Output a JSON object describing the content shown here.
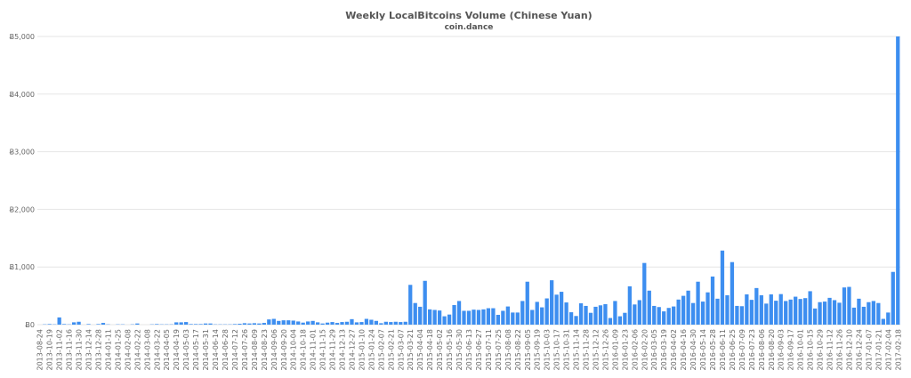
{
  "chart_data": {
    "type": "bar",
    "title": "Weekly LocalBitcoins Volume (Chinese Yuan)",
    "subtitle": "coin.dance",
    "xlabel": "",
    "ylabel": "",
    "ylim": [
      0,
      5000
    ],
    "yticks": [
      0,
      1000,
      2000,
      3000,
      4000,
      5000
    ],
    "ytick_labels": [
      "Ƀ0",
      "Ƀ1,000",
      "Ƀ2,000",
      "Ƀ3,000",
      "Ƀ4,000",
      "Ƀ5,000"
    ],
    "grid": true,
    "bar_color": "#3d8ef0",
    "categories": [
      "2013-08-24",
      "2013-10-12",
      "2013-10-19",
      "2013-10-26",
      "2013-11-02",
      "2013-11-09",
      "2013-11-16",
      "2013-11-23",
      "2013-11-30",
      "2013-12-07",
      "2013-12-14",
      "2013-12-21",
      "2013-12-28",
      "2014-01-04",
      "2014-01-11",
      "2014-01-18",
      "2014-01-25",
      "2014-02-01",
      "2014-02-08",
      "2014-02-15",
      "2014-02-22",
      "2014-03-01",
      "2014-03-08",
      "2014-03-15",
      "2014-03-22",
      "2014-03-29",
      "2014-04-05",
      "2014-04-12",
      "2014-04-19",
      "2014-04-26",
      "2014-05-03",
      "2014-05-10",
      "2014-05-17",
      "2014-05-24",
      "2014-05-31",
      "2014-06-07",
      "2014-06-14",
      "2014-06-21",
      "2014-06-28",
      "2014-07-05",
      "2014-07-12",
      "2014-07-19",
      "2014-07-26",
      "2014-08-02",
      "2014-08-09",
      "2014-08-16",
      "2014-08-23",
      "2014-08-30",
      "2014-09-06",
      "2014-09-13",
      "2014-09-20",
      "2014-09-27",
      "2014-10-04",
      "2014-10-11",
      "2014-10-18",
      "2014-10-25",
      "2014-11-01",
      "2014-11-08",
      "2014-11-15",
      "2014-11-22",
      "2014-11-29",
      "2014-12-06",
      "2014-12-13",
      "2014-12-20",
      "2014-12-27",
      "2015-01-03",
      "2015-01-10",
      "2015-01-17",
      "2015-01-24",
      "2015-01-31",
      "2015-02-07",
      "2015-02-14",
      "2015-02-21",
      "2015-02-28",
      "2015-03-07",
      "2015-03-14",
      "2015-03-21",
      "2015-03-28",
      "2015-04-04",
      "2015-04-11",
      "2015-04-18",
      "2015-04-25",
      "2015-05-02",
      "2015-05-09",
      "2015-05-16",
      "2015-05-23",
      "2015-05-30",
      "2015-06-06",
      "2015-06-13",
      "2015-06-20",
      "2015-06-27",
      "2015-07-04",
      "2015-07-11",
      "2015-07-18",
      "2015-07-25",
      "2015-08-01",
      "2015-08-08",
      "2015-08-15",
      "2015-08-22",
      "2015-08-29",
      "2015-09-05",
      "2015-09-12",
      "2015-09-19",
      "2015-09-26",
      "2015-10-03",
      "2015-10-10",
      "2015-10-17",
      "2015-10-24",
      "2015-10-31",
      "2015-11-07",
      "2015-11-14",
      "2015-11-21",
      "2015-11-28",
      "2015-12-05",
      "2015-12-12",
      "2015-12-19",
      "2015-12-26",
      "2016-01-02",
      "2016-01-09",
      "2016-01-16",
      "2016-01-23",
      "2016-01-30",
      "2016-02-06",
      "2016-02-13",
      "2016-02-20",
      "2016-02-27",
      "2016-03-05",
      "2016-03-12",
      "2016-03-19",
      "2016-03-26",
      "2016-04-02",
      "2016-04-09",
      "2016-04-16",
      "2016-04-23",
      "2016-04-30",
      "2016-05-07",
      "2016-05-14",
      "2016-05-21",
      "2016-05-28",
      "2016-06-04",
      "2016-06-11",
      "2016-06-18",
      "2016-06-25",
      "2016-07-02",
      "2016-07-09",
      "2016-07-16",
      "2016-07-23",
      "2016-07-30",
      "2016-08-06",
      "2016-08-13",
      "2016-08-20",
      "2016-08-27",
      "2016-09-03",
      "2016-09-10",
      "2016-09-17",
      "2016-09-24",
      "2016-10-01",
      "2016-10-08",
      "2016-10-15",
      "2016-10-22",
      "2016-10-29",
      "2016-11-05",
      "2016-11-12",
      "2016-11-19",
      "2016-11-26",
      "2016-12-03",
      "2016-12-10",
      "2016-12-17",
      "2016-12-24",
      "2016-12-31",
      "2017-01-07",
      "2017-01-14",
      "2017-01-21",
      "2017-01-28",
      "2017-02-04",
      "2017-02-11",
      "2017-02-18"
    ],
    "values": [
      0,
      5,
      10,
      5,
      125,
      10,
      5,
      40,
      50,
      0,
      10,
      0,
      10,
      30,
      5,
      0,
      5,
      5,
      0,
      5,
      20,
      0,
      0,
      5,
      10,
      5,
      5,
      5,
      40,
      40,
      45,
      10,
      10,
      10,
      20,
      20,
      5,
      5,
      5,
      5,
      10,
      15,
      25,
      20,
      25,
      20,
      30,
      90,
      100,
      65,
      75,
      75,
      70,
      55,
      35,
      55,
      65,
      40,
      20,
      35,
      45,
      30,
      45,
      50,
      95,
      40,
      45,
      100,
      85,
      65,
      25,
      50,
      45,
      50,
      45,
      50,
      690,
      375,
      310,
      760,
      265,
      255,
      245,
      145,
      175,
      340,
      410,
      240,
      240,
      260,
      255,
      265,
      285,
      285,
      170,
      240,
      315,
      210,
      210,
      410,
      745,
      255,
      395,
      300,
      455,
      770,
      520,
      570,
      385,
      215,
      150,
      370,
      325,
      205,
      310,
      335,
      355,
      115,
      410,
      145,
      205,
      665,
      350,
      425,
      1070,
      590,
      325,
      305,
      230,
      290,
      315,
      435,
      500,
      590,
      375,
      745,
      400,
      560,
      835,
      450,
      1285,
      510,
      1085,
      325,
      320,
      525,
      430,
      635,
      510,
      365,
      525,
      415,
      530,
      410,
      435,
      485,
      445,
      460,
      580,
      280,
      390,
      400,
      465,
      425,
      380,
      645,
      655,
      295,
      450,
      310,
      390,
      410,
      375,
      100,
      210,
      915,
      5000
    ]
  }
}
